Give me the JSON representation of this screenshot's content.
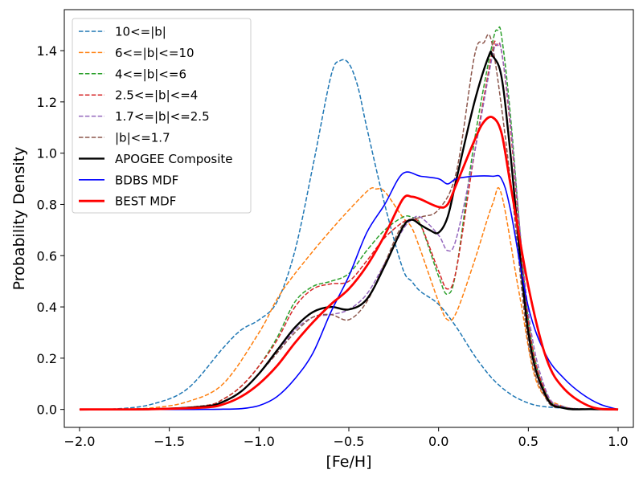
{
  "chart_data": {
    "type": "line",
    "title": "",
    "xlabel": "[Fe/H]",
    "ylabel": "Probability Density",
    "xlim": [
      -2.085,
      1.085
    ],
    "ylim": [
      -0.07,
      1.56
    ],
    "xticks": [
      -2.0,
      -1.5,
      -1.0,
      -0.5,
      0.0,
      0.5,
      1.0
    ],
    "xtick_labels": [
      "−2.0",
      "−1.5",
      "−1.0",
      "−0.5",
      "0.0",
      "0.5",
      "1.0"
    ],
    "yticks": [
      0.0,
      0.2,
      0.4,
      0.6,
      0.8,
      1.0,
      1.2,
      1.4
    ],
    "ytick_labels": [
      "0.0",
      "0.2",
      "0.4",
      "0.6",
      "0.8",
      "1.0",
      "1.2",
      "1.4"
    ],
    "grid": false,
    "legend_position": "upper-left",
    "series": [
      {
        "name": "10<=|b|",
        "color": "#1f77b4",
        "style": "dashed",
        "width": 1.5,
        "x": [
          -2.0,
          -1.8,
          -1.6,
          -1.4,
          -1.2,
          -1.1,
          -1.0,
          -0.9,
          -0.8,
          -0.7,
          -0.6,
          -0.55,
          -0.5,
          -0.45,
          -0.4,
          -0.3,
          -0.2,
          -0.15,
          -0.1,
          0.0,
          0.1,
          0.2,
          0.3,
          0.4,
          0.5,
          0.6,
          0.8,
          1.0
        ],
        "y": [
          0.0,
          0.002,
          0.02,
          0.08,
          0.24,
          0.31,
          0.35,
          0.42,
          0.62,
          0.95,
          1.3,
          1.36,
          1.35,
          1.26,
          1.1,
          0.8,
          0.55,
          0.5,
          0.46,
          0.41,
          0.32,
          0.21,
          0.12,
          0.06,
          0.025,
          0.01,
          0.002,
          0.0
        ]
      },
      {
        "name": "6<=|b|<=10",
        "color": "#ff7f0e",
        "style": "dashed",
        "width": 1.5,
        "x": [
          -2.0,
          -1.8,
          -1.6,
          -1.4,
          -1.2,
          -1.0,
          -0.9,
          -0.8,
          -0.6,
          -0.4,
          -0.35,
          -0.3,
          -0.2,
          -0.15,
          -0.1,
          0.0,
          0.05,
          0.1,
          0.2,
          0.3,
          0.35,
          0.45,
          0.55,
          0.7,
          0.85,
          1.0
        ],
        "y": [
          0.0,
          0.001,
          0.006,
          0.03,
          0.1,
          0.3,
          0.43,
          0.53,
          0.7,
          0.85,
          0.86,
          0.85,
          0.75,
          0.71,
          0.62,
          0.42,
          0.35,
          0.38,
          0.58,
          0.8,
          0.84,
          0.45,
          0.1,
          0.01,
          0.001,
          0.0
        ]
      },
      {
        "name": "4<=|b|<=6",
        "color": "#2ca02c",
        "style": "dashed",
        "width": 1.5,
        "x": [
          -2.0,
          -1.6,
          -1.3,
          -1.2,
          -1.1,
          -1.0,
          -0.9,
          -0.8,
          -0.7,
          -0.6,
          -0.5,
          -0.4,
          -0.3,
          -0.2,
          -0.15,
          -0.1,
          0.0,
          0.05,
          0.1,
          0.2,
          0.3,
          0.33,
          0.35,
          0.4,
          0.5,
          0.6,
          0.7,
          0.85,
          1.0
        ],
        "y": [
          0.0,
          0.001,
          0.015,
          0.04,
          0.09,
          0.17,
          0.28,
          0.42,
          0.48,
          0.5,
          0.53,
          0.62,
          0.7,
          0.75,
          0.75,
          0.72,
          0.52,
          0.45,
          0.55,
          1.05,
          1.43,
          1.48,
          1.46,
          1.15,
          0.35,
          0.06,
          0.01,
          0.001,
          0.0
        ]
      },
      {
        "name": "2.5<=|b|<=4",
        "color": "#d62728",
        "style": "dashed",
        "width": 1.5,
        "x": [
          -2.0,
          -1.6,
          -1.3,
          -1.2,
          -1.1,
          -1.0,
          -0.9,
          -0.8,
          -0.7,
          -0.6,
          -0.5,
          -0.4,
          -0.3,
          -0.2,
          -0.15,
          -0.1,
          0.0,
          0.05,
          0.1,
          0.2,
          0.3,
          0.32,
          0.35,
          0.4,
          0.5,
          0.6,
          0.7,
          0.85,
          1.0
        ],
        "y": [
          0.0,
          0.001,
          0.015,
          0.04,
          0.09,
          0.17,
          0.27,
          0.4,
          0.47,
          0.49,
          0.5,
          0.58,
          0.67,
          0.73,
          0.74,
          0.72,
          0.54,
          0.47,
          0.55,
          1.0,
          1.4,
          1.42,
          1.4,
          1.1,
          0.34,
          0.06,
          0.01,
          0.001,
          0.0
        ]
      },
      {
        "name": "1.7<=|b|<=2.5",
        "color": "#9467bd",
        "style": "dashed",
        "width": 1.5,
        "x": [
          -2.0,
          -1.6,
          -1.3,
          -1.2,
          -1.1,
          -1.0,
          -0.9,
          -0.8,
          -0.7,
          -0.6,
          -0.5,
          -0.4,
          -0.3,
          -0.2,
          -0.15,
          -0.1,
          0.0,
          0.05,
          0.1,
          0.2,
          0.3,
          0.33,
          0.35,
          0.4,
          0.5,
          0.6,
          0.7,
          0.85,
          1.0
        ],
        "y": [
          0.0,
          0.001,
          0.012,
          0.03,
          0.07,
          0.14,
          0.22,
          0.31,
          0.36,
          0.37,
          0.39,
          0.45,
          0.57,
          0.7,
          0.74,
          0.75,
          0.68,
          0.62,
          0.67,
          1.0,
          1.38,
          1.42,
          1.4,
          1.12,
          0.38,
          0.07,
          0.01,
          0.001,
          0.0
        ]
      },
      {
        "name": "|b|<=1.7",
        "color": "#8c564b",
        "style": "dashed",
        "width": 1.5,
        "x": [
          -2.0,
          -1.6,
          -1.3,
          -1.2,
          -1.1,
          -1.0,
          -0.9,
          -0.8,
          -0.7,
          -0.6,
          -0.5,
          -0.4,
          -0.3,
          -0.2,
          -0.1,
          0.0,
          0.1,
          0.2,
          0.25,
          0.3,
          0.4,
          0.5,
          0.6,
          0.7,
          0.85,
          1.0
        ],
        "y": [
          0.0,
          0.001,
          0.012,
          0.03,
          0.07,
          0.14,
          0.22,
          0.3,
          0.36,
          0.37,
          0.35,
          0.42,
          0.57,
          0.72,
          0.75,
          0.78,
          0.93,
          1.38,
          1.43,
          1.42,
          0.9,
          0.26,
          0.04,
          0.005,
          0.001,
          0.0
        ]
      },
      {
        "name": "APOGEE Composite",
        "color": "#000000",
        "style": "solid",
        "width": 2.4,
        "x": [
          -2.0,
          -1.6,
          -1.3,
          -1.2,
          -1.1,
          -1.0,
          -0.9,
          -0.8,
          -0.7,
          -0.6,
          -0.5,
          -0.4,
          -0.3,
          -0.2,
          -0.15,
          -0.1,
          -0.05,
          0.0,
          0.05,
          0.1,
          0.2,
          0.28,
          0.3,
          0.35,
          0.4,
          0.5,
          0.6,
          0.7,
          0.85,
          1.0
        ],
        "y": [
          0.0,
          0.001,
          0.012,
          0.03,
          0.07,
          0.14,
          0.23,
          0.32,
          0.38,
          0.4,
          0.39,
          0.43,
          0.56,
          0.71,
          0.74,
          0.72,
          0.7,
          0.69,
          0.75,
          0.9,
          1.2,
          1.38,
          1.38,
          1.3,
          1.0,
          0.3,
          0.05,
          0.005,
          0.001,
          0.0
        ]
      },
      {
        "name": "BDBS MDF",
        "color": "#0000ff",
        "style": "solid",
        "width": 1.6,
        "x": [
          -2.0,
          -1.4,
          -1.2,
          -1.1,
          -1.0,
          -0.9,
          -0.8,
          -0.7,
          -0.6,
          -0.5,
          -0.4,
          -0.3,
          -0.2,
          -0.1,
          0.0,
          0.05,
          0.1,
          0.2,
          0.3,
          0.35,
          0.4,
          0.5,
          0.6,
          0.7,
          0.8,
          0.9,
          1.0
        ],
        "y": [
          0.0,
          0.0,
          0.001,
          0.003,
          0.015,
          0.05,
          0.12,
          0.22,
          0.38,
          0.52,
          0.69,
          0.8,
          0.92,
          0.91,
          0.9,
          0.88,
          0.9,
          0.91,
          0.91,
          0.9,
          0.78,
          0.4,
          0.21,
          0.12,
          0.06,
          0.02,
          0.0
        ]
      },
      {
        "name": "BEST MDF",
        "color": "#ff0000",
        "style": "solid",
        "width": 2.8,
        "x": [
          -2.0,
          -1.6,
          -1.3,
          -1.2,
          -1.1,
          -1.0,
          -0.9,
          -0.8,
          -0.7,
          -0.6,
          -0.5,
          -0.4,
          -0.3,
          -0.2,
          -0.15,
          -0.1,
          0.0,
          0.05,
          0.1,
          0.2,
          0.25,
          0.3,
          0.35,
          0.4,
          0.5,
          0.6,
          0.7,
          0.85,
          1.0
        ],
        "y": [
          0.0,
          0.001,
          0.008,
          0.02,
          0.05,
          0.1,
          0.17,
          0.26,
          0.34,
          0.41,
          0.47,
          0.56,
          0.68,
          0.82,
          0.83,
          0.82,
          0.79,
          0.8,
          0.88,
          1.05,
          1.12,
          1.14,
          1.08,
          0.88,
          0.48,
          0.2,
          0.08,
          0.01,
          0.0
        ]
      }
    ]
  }
}
